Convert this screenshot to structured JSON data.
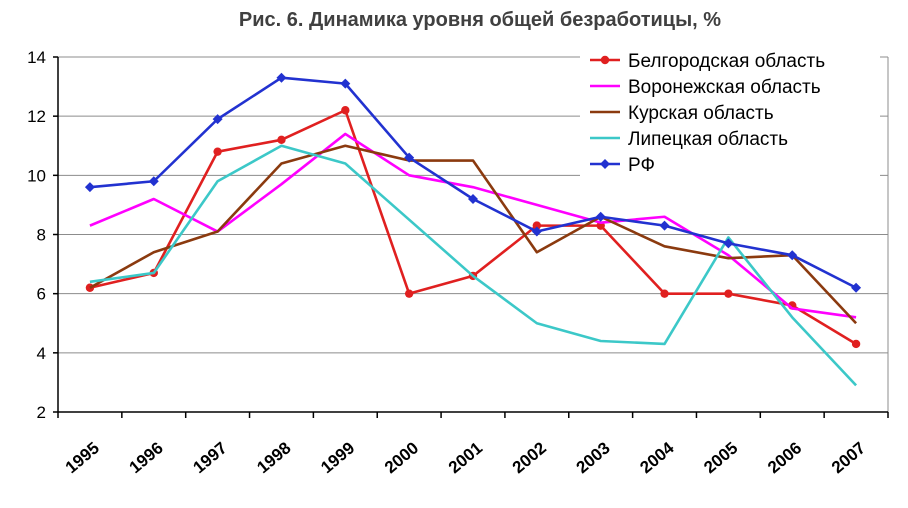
{
  "chart_data": {
    "type": "line",
    "title": "Рис. 6. Динамика уровня общей безработицы, %",
    "xlabel": "",
    "ylabel": "",
    "categories": [
      "1995",
      "1996",
      "1997",
      "1998",
      "1999",
      "2000",
      "2001",
      "2002",
      "2003",
      "2004",
      "2005",
      "2006",
      "2007"
    ],
    "ylim": [
      2,
      14
    ],
    "yticks": [
      2,
      4,
      6,
      8,
      10,
      12,
      14
    ],
    "grid": true,
    "legend_position": "top-right",
    "series": [
      {
        "name": "Белгородская область",
        "color": "#e02020",
        "marker": "circle",
        "values": [
          6.2,
          6.7,
          10.8,
          11.2,
          12.2,
          6.0,
          6.6,
          8.3,
          8.3,
          6.0,
          6.0,
          5.6,
          4.3
        ]
      },
      {
        "name": "Воронежская область",
        "color": "#ff00ff",
        "marker": "none",
        "values": [
          8.3,
          9.2,
          8.1,
          9.7,
          11.4,
          10.0,
          9.6,
          9.0,
          8.4,
          8.6,
          7.3,
          5.5,
          5.2
        ]
      },
      {
        "name": "Курская область",
        "color": "#8b3a0f",
        "marker": "none",
        "values": [
          6.2,
          7.4,
          8.1,
          10.4,
          11.0,
          10.5,
          10.5,
          7.4,
          8.6,
          7.6,
          7.2,
          7.3,
          5.0
        ]
      },
      {
        "name": "Липецкая область",
        "color": "#3cc8c8",
        "marker": "none",
        "values": [
          6.4,
          6.7,
          9.8,
          11.0,
          10.4,
          8.5,
          6.6,
          5.0,
          4.4,
          4.3,
          7.9,
          5.2,
          2.9
        ]
      },
      {
        "name": "РФ",
        "color": "#2232d0",
        "marker": "diamond",
        "values": [
          9.6,
          9.8,
          11.9,
          13.3,
          13.1,
          10.6,
          9.2,
          8.1,
          8.6,
          8.3,
          7.7,
          7.3,
          6.2
        ]
      }
    ]
  }
}
